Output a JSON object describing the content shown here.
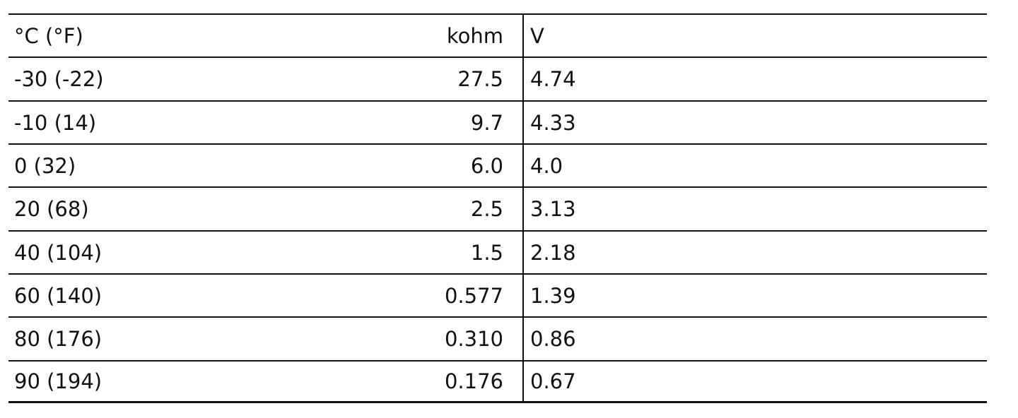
{
  "table": {
    "header": [
      "°C (°F)",
      "kohm",
      "V"
    ],
    "rows": [
      [
        "-30 (-22)",
        "27.5",
        "4.74"
      ],
      [
        "-10 (14)",
        "9.7",
        "4.33"
      ],
      [
        "0 (32)",
        "6.0",
        "4.0"
      ],
      [
        "20 (68)",
        "2.5",
        "3.13"
      ],
      [
        "40 (104)",
        "1.5",
        "2.18"
      ],
      [
        "60 (140)",
        "0.577",
        "1.39"
      ],
      [
        "80 (176)",
        "0.310",
        "0.86"
      ],
      [
        "90 (194)",
        "0.176",
        "0.67"
      ]
    ]
  }
}
